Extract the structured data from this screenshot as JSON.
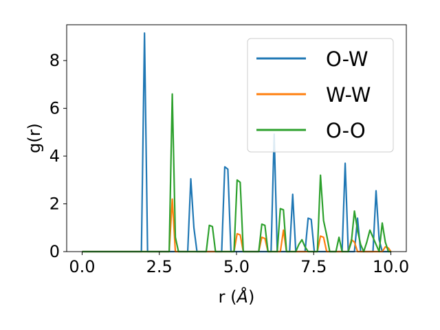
{
  "chart_data": {
    "type": "line",
    "xlabel": "r (",
    "xlabel_unit": "Å",
    "xlabel_close": ")",
    "ylabel": "g(r)",
    "xlim": [
      -0.5,
      10.5
    ],
    "ylim": [
      0,
      9.5
    ],
    "xticks": [
      0.0,
      2.5,
      5.0,
      7.5,
      10.0
    ],
    "xtick_labels": [
      "0.0",
      "2.5",
      "5.0",
      "7.5",
      "10.0"
    ],
    "yticks": [
      0,
      2,
      4,
      6,
      8
    ],
    "ytick_labels": [
      "0",
      "2",
      "4",
      "6",
      "8"
    ],
    "grid": false,
    "legend_position": "top-right",
    "series": [
      {
        "name": "O-W",
        "color": "#1f77b4",
        "x": [
          0,
          1.92,
          2.02,
          2.12,
          3.42,
          3.52,
          3.62,
          3.72,
          4.52,
          4.62,
          4.72,
          4.82,
          6.12,
          6.22,
          6.32,
          6.72,
          6.82,
          6.92,
          7.22,
          7.32,
          7.42,
          7.52,
          8.42,
          8.52,
          8.62,
          8.82,
          8.92,
          9.02,
          9.42,
          9.52,
          9.62,
          9.72,
          10.0
        ],
        "y": [
          0,
          0,
          9.15,
          0,
          0,
          3.05,
          1.0,
          0,
          0,
          3.55,
          3.45,
          0,
          0,
          4.92,
          0,
          0,
          2.4,
          0,
          0,
          1.4,
          1.35,
          0,
          0,
          3.7,
          0,
          0,
          1.4,
          0,
          0,
          2.55,
          0.5,
          0,
          0
        ]
      },
      {
        "name": "W-W",
        "color": "#ff7f0e",
        "x": [
          0,
          2.82,
          2.92,
          3.02,
          4.92,
          5.02,
          5.12,
          5.22,
          5.72,
          5.82,
          5.92,
          6.02,
          6.42,
          6.52,
          6.62,
          7.62,
          7.72,
          7.82,
          7.92,
          8.62,
          8.72,
          8.82,
          8.92,
          9.72,
          9.82,
          9.92,
          10.0
        ],
        "y": [
          0,
          0,
          2.2,
          0,
          0,
          0.75,
          0.7,
          0,
          0,
          0.6,
          0.55,
          0,
          0,
          0.9,
          0,
          0,
          0.65,
          0.6,
          0,
          0,
          0.5,
          0.4,
          0,
          0,
          0.2,
          0.15,
          0
        ]
      },
      {
        "name": "O-O",
        "color": "#2ca02c",
        "x": [
          0,
          2.82,
          2.92,
          3.02,
          3.12,
          3.22,
          4.02,
          4.12,
          4.22,
          4.32,
          4.92,
          5.02,
          5.12,
          5.22,
          5.72,
          5.82,
          5.92,
          6.02,
          6.32,
          6.42,
          6.52,
          6.62,
          6.92,
          7.02,
          7.12,
          7.22,
          7.32,
          7.62,
          7.72,
          7.82,
          7.92,
          8.02,
          8.22,
          8.32,
          8.42,
          8.62,
          8.72,
          8.82,
          8.92,
          9.02,
          9.12,
          9.22,
          9.32,
          9.42,
          9.62,
          9.72,
          9.82,
          9.92,
          10.0
        ],
        "y": [
          0,
          0,
          6.6,
          0.6,
          0,
          0,
          0,
          1.1,
          1.05,
          0,
          0,
          3.0,
          2.9,
          0,
          0,
          1.15,
          1.1,
          0,
          0,
          1.8,
          1.75,
          0,
          0,
          0.3,
          0.5,
          0.2,
          0,
          0,
          3.2,
          1.3,
          0.7,
          0,
          0,
          0.6,
          0,
          0,
          0.4,
          1.7,
          0.9,
          0.3,
          0,
          0.4,
          0.9,
          0.6,
          0,
          1.2,
          0.4,
          0,
          0
        ]
      }
    ]
  }
}
